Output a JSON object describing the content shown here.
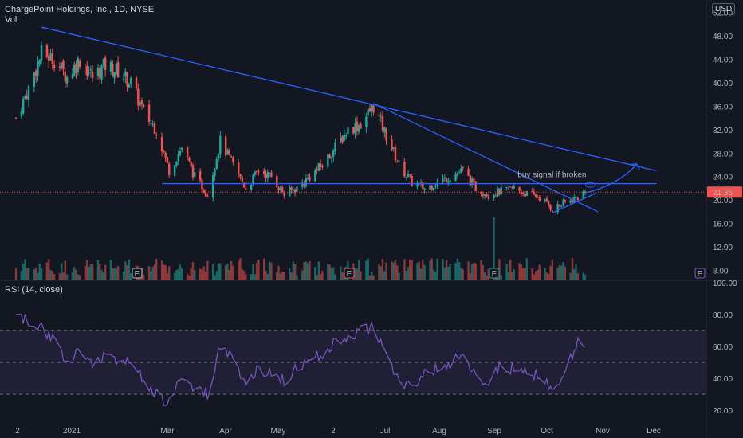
{
  "header": {
    "symbol_line": "ChargePoint Holdings, Inc., 1D, NYSE",
    "volume_label": "Vol",
    "currency": "USD"
  },
  "rsi_panel": {
    "label": "RSI (14, close)"
  },
  "colors": {
    "background": "#131722",
    "up": "#26a69a",
    "down": "#ef5350",
    "trendline": "#2962ff",
    "rsi_line": "#7e57c2",
    "rsi_band": "#7e57c2",
    "price_line": "#ef5350",
    "annotation_text": "#26a69a"
  },
  "chart_data": [
    {
      "type": "candlestick",
      "ticker": "ChargePoint Holdings, Inc.",
      "interval": "1D",
      "exchange": "NYSE",
      "x_ticks": [
        "2",
        "2021",
        "Mar",
        "Apr",
        "May",
        "2",
        "Jul",
        "Aug",
        "Sep",
        "Oct",
        "Nov",
        "Dec"
      ],
      "y_ticks": [
        8.0,
        12.0,
        16.0,
        20.0,
        24.0,
        28.0,
        32.0,
        36.0,
        40.0,
        44.0,
        48.0,
        52.0
      ],
      "y_tick_labels": [
        "8.00",
        "12.00",
        "16.00",
        "20.00",
        "24.00",
        "28.00",
        "32.00",
        "36.00",
        "40.00",
        "44.00",
        "48.00",
        "52.00"
      ],
      "ylim": [
        6.5,
        53
      ],
      "last_price": 21.35,
      "last_price_label": "21.35",
      "approx_close_path": [
        [
          "Dec 14",
          34
        ],
        [
          "Dec 21",
          39
        ],
        [
          "Dec 28",
          45
        ],
        [
          "Jan 4",
          44
        ],
        [
          "Jan 11",
          41
        ],
        [
          "Jan 18",
          44
        ],
        [
          "Jan 25",
          41
        ],
        [
          "Feb 1",
          43
        ],
        [
          "Feb 8",
          42
        ],
        [
          "Feb 15",
          40
        ],
        [
          "Feb 22",
          35
        ],
        [
          "Mar 1",
          32
        ],
        [
          "Mar 8",
          25
        ],
        [
          "Mar 15",
          29
        ],
        [
          "Mar 22",
          24
        ],
        [
          "Mar 29",
          21
        ],
        [
          "Apr 5",
          30
        ],
        [
          "Apr 12",
          26
        ],
        [
          "Apr 19",
          22
        ],
        [
          "Apr 26",
          25
        ],
        [
          "May 3",
          24
        ],
        [
          "May 10",
          21
        ],
        [
          "May 17",
          22
        ],
        [
          "May 24",
          24
        ],
        [
          "May 31",
          26
        ],
        [
          "Jun 7",
          29
        ],
        [
          "Jun 14",
          32
        ],
        [
          "Jun 21",
          33
        ],
        [
          "Jun 28",
          36
        ],
        [
          "Jul 5",
          31
        ],
        [
          "Jul 12",
          26
        ],
        [
          "Jul 19",
          23
        ],
        [
          "Jul 26",
          22
        ],
        [
          "Aug 2",
          23
        ],
        [
          "Aug 9",
          24
        ],
        [
          "Aug 16",
          25
        ],
        [
          "Aug 23",
          22
        ],
        [
          "Aug 30",
          21
        ],
        [
          "Sep 6",
          21.5
        ],
        [
          "Sep 13",
          22
        ],
        [
          "Sep 20",
          21
        ],
        [
          "Sep 27",
          20.5
        ],
        [
          "Oct 4",
          18.5
        ],
        [
          "Oct 11",
          19.5
        ],
        [
          "Oct 18",
          20.5
        ],
        [
          "Oct 22",
          21.35
        ]
      ],
      "annotations": {
        "text": "buy signal if broken",
        "earnings_markers": [
          "E",
          "E",
          "E",
          "E"
        ]
      }
    },
    {
      "type": "line",
      "name": "RSI (14, close)",
      "y_ticks": [
        20.0,
        40.0,
        60.0,
        80.0,
        100.0
      ],
      "y_tick_labels": [
        "20.00",
        "40.00",
        "60.00",
        "80.00",
        "100.00"
      ],
      "ylim": [
        15,
        100
      ],
      "bands": [
        30,
        50,
        70
      ],
      "approx_values": [
        [
          "Dec 14",
          80
        ],
        [
          "Dec 21",
          75
        ],
        [
          "Dec 28",
          72
        ],
        [
          "Jan 4",
          62
        ],
        [
          "Jan 11",
          52
        ],
        [
          "Jan 18",
          56
        ],
        [
          "Jan 25",
          48
        ],
        [
          "Feb 1",
          56
        ],
        [
          "Feb 8",
          52
        ],
        [
          "Feb 15",
          48
        ],
        [
          "Feb 22",
          40
        ],
        [
          "Mar 1",
          30
        ],
        [
          "Mar 8",
          24
        ],
        [
          "Mar 15",
          42
        ],
        [
          "Mar 22",
          34
        ],
        [
          "Mar 29",
          30
        ],
        [
          "Apr 5",
          62
        ],
        [
          "Apr 12",
          50
        ],
        [
          "Apr 19",
          38
        ],
        [
          "Apr 26",
          46
        ],
        [
          "May 3",
          44
        ],
        [
          "May 10",
          38
        ],
        [
          "May 17",
          46
        ],
        [
          "May 24",
          52
        ],
        [
          "May 31",
          56
        ],
        [
          "Jun 7",
          62
        ],
        [
          "Jun 14",
          66
        ],
        [
          "Jun 21",
          70
        ],
        [
          "Jun 28",
          72
        ],
        [
          "Jul 5",
          54
        ],
        [
          "Jul 12",
          38
        ],
        [
          "Jul 19",
          34
        ],
        [
          "Jul 26",
          44
        ],
        [
          "Aug 2",
          46
        ],
        [
          "Aug 9",
          50
        ],
        [
          "Aug 16",
          54
        ],
        [
          "Aug 23",
          40
        ],
        [
          "Aug 30",
          38
        ],
        [
          "Sep 6",
          48
        ],
        [
          "Sep 13",
          46
        ],
        [
          "Sep 20",
          44
        ],
        [
          "Sep 27",
          42
        ],
        [
          "Oct 4",
          31
        ],
        [
          "Oct 11",
          45
        ],
        [
          "Oct 18",
          62
        ],
        [
          "Oct 22",
          58
        ]
      ]
    }
  ]
}
